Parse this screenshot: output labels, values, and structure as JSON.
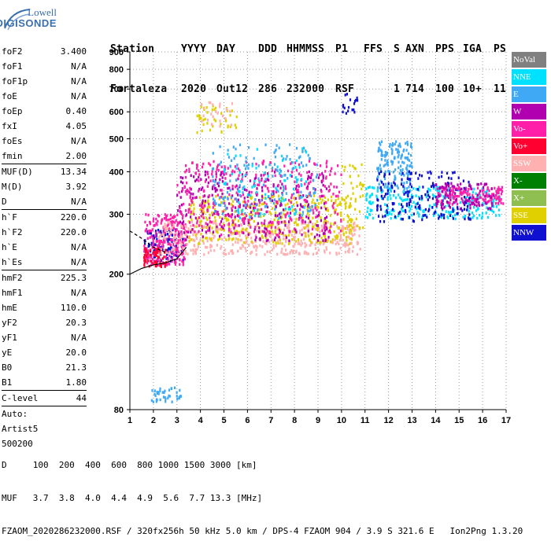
{
  "logo": {
    "line1": "Lowell",
    "line2": "DIGISONDE"
  },
  "header": {
    "row1": [
      "Station",
      "YYYY",
      "DAY",
      "DDD",
      "HHMMSS",
      "P1",
      "FFS",
      "S",
      "AXN",
      "PPS",
      "IGA",
      "PS"
    ],
    "row2": [
      "Fortaleza",
      "2020",
      "Out12",
      "286",
      "232000",
      "RSF",
      "",
      "1",
      "714",
      "100",
      "10+",
      "11"
    ]
  },
  "params": [
    {
      "k": "foF2",
      "v": "3.400"
    },
    {
      "k": "foF1",
      "v": "N/A"
    },
    {
      "k": "foF1p",
      "v": "N/A"
    },
    {
      "k": "foE",
      "v": "N/A"
    },
    {
      "k": "foEp",
      "v": "0.40"
    },
    {
      "k": "fxI",
      "v": "4.05"
    },
    {
      "k": "foEs",
      "v": "N/A"
    },
    {
      "k": "fmin",
      "v": "2.00",
      "sep": true
    },
    {
      "k": "MUF(D)",
      "v": "13.34"
    },
    {
      "k": "M(D)",
      "v": "3.92"
    },
    {
      "k": "D",
      "v": "N/A",
      "sep": true
    },
    {
      "k": "h`F",
      "v": "220.0"
    },
    {
      "k": "h`F2",
      "v": "220.0"
    },
    {
      "k": "h`E",
      "v": "N/A"
    },
    {
      "k": "h`Es",
      "v": "N/A",
      "sep": true
    },
    {
      "k": "hmF2",
      "v": "225.3"
    },
    {
      "k": "hmF1",
      "v": "N/A"
    },
    {
      "k": "hmE",
      "v": "110.0"
    },
    {
      "k": "yF2",
      "v": "20.3"
    },
    {
      "k": "yF1",
      "v": "N/A"
    },
    {
      "k": "yE",
      "v": "20.0"
    },
    {
      "k": "B0",
      "v": "21.3"
    },
    {
      "k": "B1",
      "v": "1.80",
      "sep": true
    },
    {
      "k": "C-level",
      "v": "44",
      "sep": true
    },
    {
      "k": "Auto:",
      "v": ""
    },
    {
      "k": "Artist5",
      "v": ""
    },
    {
      "k": "500200",
      "v": ""
    }
  ],
  "legend": [
    {
      "label": "NoVal",
      "color": "#808080"
    },
    {
      "label": "NNE",
      "color": "#00e0ff"
    },
    {
      "label": "E",
      "color": "#3fa9f5"
    },
    {
      "label": "W",
      "color": "#b000b0"
    },
    {
      "label": "Vo-",
      "color": "#ff1fa8"
    },
    {
      "label": "Vo+",
      "color": "#ff0030"
    },
    {
      "label": "SSW",
      "color": "#ffb0b0"
    },
    {
      "label": "X-",
      "color": "#008000"
    },
    {
      "label": "X+",
      "color": "#8fbf50"
    },
    {
      "label": "SSE",
      "color": "#e0d000"
    },
    {
      "label": "NNW",
      "color": "#1010d0"
    }
  ],
  "footer": {
    "line1": "D     100  200  400  600  800 1000 1500 3000 [km]",
    "line2": "MUF   3.7  3.8  4.0  4.4  4.9  5.6  7.7 13.3 [MHz]",
    "line3": "FZAOM_2020286232000.RSF / 320fx256h 50 kHz 5.0 km / DPS-4 FZAOM 904 / 3.9 S 321.6 E   Ion2Png 1.3.20"
  },
  "chart_data": {
    "type": "scatter",
    "title": "",
    "xlabel": "",
    "ylabel": "",
    "xlim": [
      1,
      17
    ],
    "ylim": [
      80,
      900
    ],
    "y_scale": "log",
    "xticks": [
      1,
      2,
      3,
      4,
      5,
      6,
      7,
      8,
      9,
      10,
      11,
      12,
      13,
      14,
      15,
      16,
      17
    ],
    "yticks": [
      80,
      200,
      300,
      400,
      500,
      600,
      700,
      800,
      900
    ],
    "trace": {
      "name": "",
      "color": "#000000",
      "x": [
        1.0,
        1.5,
        2.0,
        2.5,
        3.0,
        3.4
      ],
      "y": [
        200,
        208,
        213,
        216,
        222,
        240
      ]
    },
    "trace2": {
      "name": "",
      "color": "#000000",
      "dashed": true,
      "x": [
        1.0,
        1.5,
        2.0,
        2.5
      ],
      "y": [
        268,
        255,
        240,
        232
      ]
    },
    "clusters": [
      {
        "color": "#1010d0",
        "x0": 1.6,
        "x1": 3.3,
        "y0": 218,
        "y1": 270,
        "n": 120
      },
      {
        "color": "#ff1fa8",
        "x0": 1.6,
        "x1": 3.4,
        "y0": 212,
        "y1": 300,
        "n": 220
      },
      {
        "color": "#ff0030",
        "x0": 1.6,
        "x1": 2.6,
        "y0": 210,
        "y1": 240,
        "n": 60
      },
      {
        "color": "#3fa9f5",
        "x0": 1.9,
        "x1": 3.2,
        "y0": 84,
        "y1": 93,
        "n": 40
      },
      {
        "color": "#ffb0b0",
        "x0": 2.2,
        "x1": 10.8,
        "y0": 228,
        "y1": 285,
        "n": 450
      },
      {
        "color": "#e0d000",
        "x0": 3.5,
        "x1": 10.5,
        "y0": 245,
        "y1": 340,
        "n": 380
      },
      {
        "color": "#b000b0",
        "x0": 3.0,
        "x1": 9.5,
        "y0": 250,
        "y1": 400,
        "n": 300
      },
      {
        "color": "#ff1fa8",
        "x0": 3.0,
        "x1": 10.0,
        "y0": 260,
        "y1": 430,
        "n": 350
      },
      {
        "color": "#3fa9f5",
        "x0": 4.5,
        "x1": 9.0,
        "y0": 300,
        "y1": 480,
        "n": 160
      },
      {
        "color": "#00e0ff",
        "x0": 5.0,
        "x1": 8.5,
        "y0": 290,
        "y1": 470,
        "n": 80
      },
      {
        "color": "#e0d000",
        "x0": 3.8,
        "x1": 5.6,
        "y0": 520,
        "y1": 630,
        "n": 40
      },
      {
        "color": "#ffb0b0",
        "x0": 4.0,
        "x1": 5.5,
        "y0": 540,
        "y1": 640,
        "n": 25
      },
      {
        "color": "#1010d0",
        "x0": 10.0,
        "x1": 10.7,
        "y0": 590,
        "y1": 690,
        "n": 18
      },
      {
        "color": "#3fa9f5",
        "x0": 11.5,
        "x1": 13.0,
        "y0": 350,
        "y1": 490,
        "n": 160
      },
      {
        "color": "#00e0ff",
        "x0": 11.0,
        "x1": 16.8,
        "y0": 290,
        "y1": 360,
        "n": 260
      },
      {
        "color": "#1010d0",
        "x0": 11.5,
        "x1": 15.5,
        "y0": 285,
        "y1": 400,
        "n": 180
      },
      {
        "color": "#ff1fa8",
        "x0": 14.0,
        "x1": 16.9,
        "y0": 320,
        "y1": 360,
        "n": 140
      },
      {
        "color": "#b000b0",
        "x0": 14.0,
        "x1": 16.5,
        "y0": 310,
        "y1": 370,
        "n": 90
      },
      {
        "color": "#e0d000",
        "x0": 10.0,
        "x1": 11.0,
        "y0": 270,
        "y1": 420,
        "n": 40
      }
    ]
  }
}
